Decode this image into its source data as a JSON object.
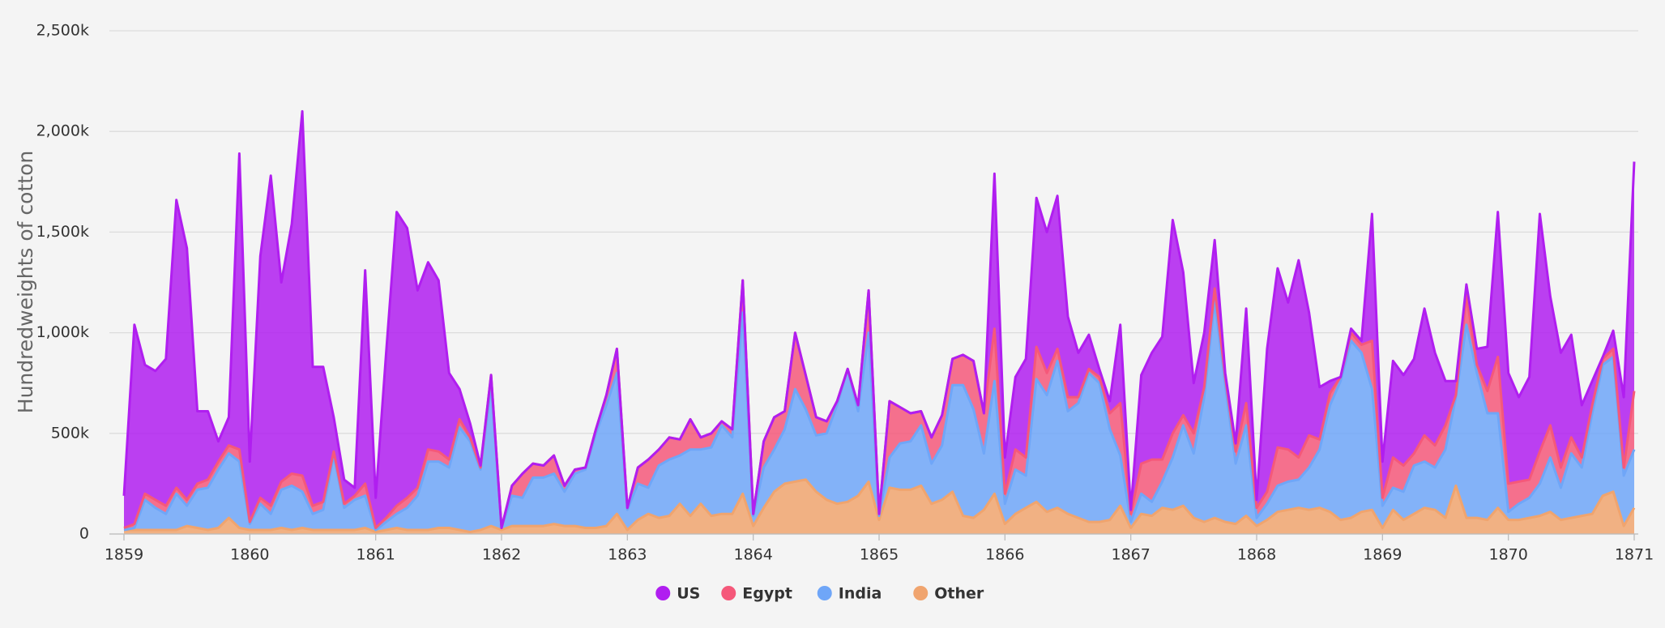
{
  "chart_data": {
    "type": "stacked-area",
    "y_label": "Hundredweights of cotton",
    "categories": [
      "1859",
      null,
      null,
      null,
      null,
      null,
      null,
      null,
      null,
      null,
      null,
      null,
      "1860",
      null,
      null,
      null,
      null,
      null,
      null,
      null,
      null,
      null,
      null,
      null,
      "1861",
      null,
      null,
      null,
      null,
      null,
      null,
      null,
      null,
      null,
      null,
      null,
      "1862",
      null,
      null,
      null,
      null,
      null,
      null,
      null,
      null,
      null,
      null,
      null,
      "1863",
      null,
      null,
      null,
      null,
      null,
      null,
      null,
      null,
      null,
      null,
      null,
      "1864",
      null,
      null,
      null,
      null,
      null,
      null,
      null,
      null,
      null,
      null,
      null,
      "1865",
      null,
      null,
      null,
      null,
      null,
      null,
      null,
      null,
      null,
      null,
      null,
      "1866",
      null,
      null,
      null,
      null,
      null,
      null,
      null,
      null,
      null,
      null,
      null,
      "1867",
      null,
      null,
      null,
      null,
      null,
      null,
      null,
      null,
      null,
      null,
      null,
      "1868",
      null,
      null,
      null,
      null,
      null,
      null,
      null,
      null,
      null,
      null,
      null,
      "1869",
      null,
      null,
      null,
      null,
      null,
      null,
      null,
      null,
      null,
      null,
      null,
      "1870",
      null,
      null,
      null,
      null,
      null,
      null,
      null,
      null,
      null,
      null,
      null,
      "1871"
    ],
    "series": [
      {
        "name": "US",
        "color": "#b01ef0",
        "values": [
          160000,
          990000,
          640000,
          640000,
          730000,
          1430000,
          1250000,
          360000,
          340000,
          100000,
          140000,
          1470000,
          300000,
          1200000,
          1640000,
          990000,
          1240000,
          1810000,
          690000,
          670000,
          170000,
          120000,
          40000,
          1060000,
          150000,
          820000,
          1460000,
          1340000,
          980000,
          930000,
          850000,
          430000,
          150000,
          70000,
          10000,
          0,
          0,
          0,
          0,
          0,
          0,
          0,
          0,
          0,
          0,
          0,
          0,
          0,
          0,
          0,
          0,
          0,
          0,
          0,
          0,
          0,
          0,
          0,
          0,
          0,
          0,
          0,
          0,
          0,
          0,
          0,
          0,
          0,
          0,
          0,
          0,
          0,
          0,
          0,
          0,
          0,
          0,
          0,
          0,
          0,
          0,
          0,
          0,
          770000,
          180000,
          360000,
          490000,
          740000,
          700000,
          760000,
          400000,
          220000,
          170000,
          40000,
          60000,
          390000,
          20000,
          440000,
          530000,
          610000,
          1060000,
          710000,
          250000,
          270000,
          240000,
          20000,
          40000,
          470000,
          40000,
          710000,
          890000,
          730000,
          980000,
          610000,
          260000,
          60000,
          0,
          20000,
          20000,
          630000,
          180000,
          480000,
          450000,
          470000,
          630000,
          460000,
          220000,
          70000,
          50000,
          80000,
          220000,
          720000,
          550000,
          420000,
          510000,
          1180000,
          640000,
          570000,
          510000,
          260000,
          120000,
          10000,
          90000,
          350000,
          1140000
        ]
      },
      {
        "name": "Egypt",
        "color": "#f5587a",
        "values": [
          10000,
          20000,
          30000,
          40000,
          40000,
          30000,
          30000,
          30000,
          40000,
          40000,
          40000,
          60000,
          10000,
          30000,
          40000,
          40000,
          60000,
          80000,
          40000,
          40000,
          20000,
          20000,
          20000,
          60000,
          10000,
          20000,
          40000,
          50000,
          40000,
          60000,
          50000,
          40000,
          40000,
          20000,
          10000,
          50000,
          0,
          50000,
          120000,
          70000,
          60000,
          90000,
          30000,
          20000,
          10000,
          20000,
          50000,
          120000,
          10000,
          80000,
          140000,
          80000,
          110000,
          80000,
          150000,
          60000,
          70000,
          20000,
          40000,
          160000,
          10000,
          130000,
          160000,
          90000,
          280000,
          170000,
          90000,
          60000,
          20000,
          0,
          30000,
          210000,
          10000,
          280000,
          180000,
          140000,
          70000,
          130000,
          150000,
          130000,
          150000,
          240000,
          200000,
          260000,
          50000,
          100000,
          90000,
          160000,
          110000,
          60000,
          70000,
          30000,
          20000,
          30000,
          80000,
          260000,
          40000,
          150000,
          210000,
          110000,
          120000,
          50000,
          100000,
          50000,
          60000,
          40000,
          60000,
          110000,
          50000,
          60000,
          190000,
          160000,
          110000,
          160000,
          50000,
          60000,
          20000,
          40000,
          40000,
          240000,
          40000,
          150000,
          130000,
          60000,
          130000,
          110000,
          120000,
          10000,
          150000,
          40000,
          110000,
          280000,
          140000,
          110000,
          90000,
          160000,
          160000,
          100000,
          80000,
          50000,
          40000,
          30000,
          40000,
          40000,
          290000
        ]
      },
      {
        "name": "India",
        "color": "#6fa6f8",
        "values": [
          0,
          10000,
          150000,
          110000,
          80000,
          180000,
          100000,
          190000,
          210000,
          290000,
          320000,
          330000,
          30000,
          130000,
          80000,
          190000,
          220000,
          180000,
          80000,
          100000,
          370000,
          110000,
          150000,
          160000,
          10000,
          40000,
          70000,
          110000,
          170000,
          340000,
          330000,
          300000,
          510000,
          450000,
          300000,
          700000,
          10000,
          150000,
          140000,
          240000,
          240000,
          250000,
          170000,
          260000,
          290000,
          470000,
          600000,
          700000,
          100000,
          180000,
          130000,
          260000,
          280000,
          240000,
          330000,
          270000,
          340000,
          440000,
          380000,
          900000,
          50000,
          200000,
          210000,
          270000,
          460000,
          350000,
          280000,
          330000,
          490000,
          660000,
          420000,
          740000,
          20000,
          150000,
          230000,
          240000,
          300000,
          200000,
          270000,
          530000,
          650000,
          540000,
          280000,
          560000,
          100000,
          220000,
          160000,
          610000,
          580000,
          730000,
          510000,
          570000,
          740000,
          690000,
          450000,
          250000,
          30000,
          100000,
          70000,
          130000,
          260000,
          400000,
          320000,
          620000,
          1080000,
          680000,
          300000,
          450000,
          40000,
          80000,
          130000,
          140000,
          140000,
          210000,
          290000,
          530000,
          690000,
          880000,
          790000,
          600000,
          110000,
          110000,
          140000,
          240000,
          230000,
          210000,
          340000,
          440000,
          960000,
          720000,
          530000,
          470000,
          40000,
          80000,
          100000,
          160000,
          270000,
          160000,
          320000,
          240000,
          500000,
          650000,
          670000,
          250000,
          290000
        ]
      },
      {
        "name": "Other",
        "color": "#f0a46e",
        "values": [
          20000,
          20000,
          20000,
          20000,
          20000,
          20000,
          40000,
          30000,
          20000,
          30000,
          80000,
          30000,
          20000,
          20000,
          20000,
          30000,
          20000,
          30000,
          20000,
          20000,
          20000,
          20000,
          20000,
          30000,
          10000,
          20000,
          30000,
          20000,
          20000,
          20000,
          30000,
          30000,
          20000,
          10000,
          20000,
          40000,
          20000,
          40000,
          40000,
          40000,
          40000,
          50000,
          40000,
          40000,
          30000,
          30000,
          40000,
          100000,
          20000,
          70000,
          100000,
          80000,
          90000,
          150000,
          90000,
          150000,
          90000,
          100000,
          100000,
          200000,
          40000,
          130000,
          210000,
          250000,
          260000,
          270000,
          210000,
          170000,
          150000,
          160000,
          190000,
          260000,
          70000,
          230000,
          220000,
          220000,
          240000,
          150000,
          170000,
          210000,
          90000,
          80000,
          120000,
          200000,
          50000,
          100000,
          130000,
          160000,
          110000,
          130000,
          100000,
          80000,
          60000,
          60000,
          70000,
          140000,
          30000,
          100000,
          90000,
          130000,
          120000,
          140000,
          80000,
          60000,
          80000,
          60000,
          50000,
          90000,
          40000,
          70000,
          110000,
          120000,
          130000,
          120000,
          130000,
          110000,
          70000,
          80000,
          110000,
          120000,
          30000,
          120000,
          70000,
          100000,
          130000,
          120000,
          80000,
          240000,
          80000,
          80000,
          70000,
          130000,
          70000,
          70000,
          80000,
          90000,
          110000,
          70000,
          80000,
          90000,
          100000,
          190000,
          210000,
          40000,
          130000
        ]
      }
    ],
    "ylim": [
      0,
      2500000
    ],
    "yticks": [
      0,
      {
        "value": 500000,
        "label": "500k"
      },
      {
        "value": 1000000,
        "label": "1,000k"
      },
      {
        "value": 1500000,
        "label": "1,500k"
      },
      {
        "value": 2000000,
        "label": "2,000k"
      },
      {
        "value": 2500000,
        "label": "2,500k"
      }
    ],
    "grid": true,
    "legend": "bottom"
  }
}
